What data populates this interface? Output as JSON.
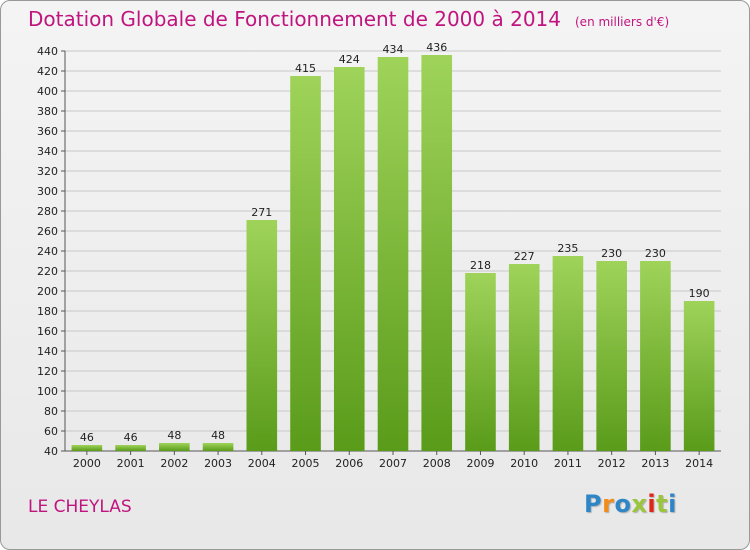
{
  "page": {
    "title": "Dotation Globale de Fonctionnement de 2000 à 2014",
    "subtitle": "(en milliers d'€)",
    "place": "LE CHEYLAS",
    "brand": "Proxiti"
  },
  "colors": {
    "title": "#c0157f",
    "bar_top": "#9fd35a",
    "bar_bottom": "#5a9b1a",
    "grid": "#c8c8c8",
    "axis": "#555555",
    "brand_letters": [
      "#2f86c6",
      "#f28c1b",
      "#2f86c6",
      "#9bc53d",
      "#e2231a",
      "#9bc53d",
      "#2f86c6"
    ]
  },
  "chart_data": {
    "type": "bar",
    "title": "Dotation Globale de Fonctionnement de 2000 à 2014",
    "subtitle": "(en milliers d'€)",
    "categories": [
      "2000",
      "2001",
      "2002",
      "2003",
      "2004",
      "2005",
      "2006",
      "2007",
      "2008",
      "2009",
      "2010",
      "2011",
      "2012",
      "2013",
      "2014"
    ],
    "values": [
      46,
      46,
      48,
      48,
      271,
      415,
      424,
      434,
      436,
      218,
      227,
      235,
      230,
      230,
      190
    ],
    "ylim": [
      40,
      440
    ],
    "yticks": [
      40,
      60,
      80,
      100,
      120,
      140,
      160,
      180,
      200,
      220,
      240,
      260,
      280,
      300,
      320,
      340,
      360,
      380,
      400,
      420,
      440
    ],
    "grid": true,
    "data_labels": true,
    "legend": "none"
  }
}
